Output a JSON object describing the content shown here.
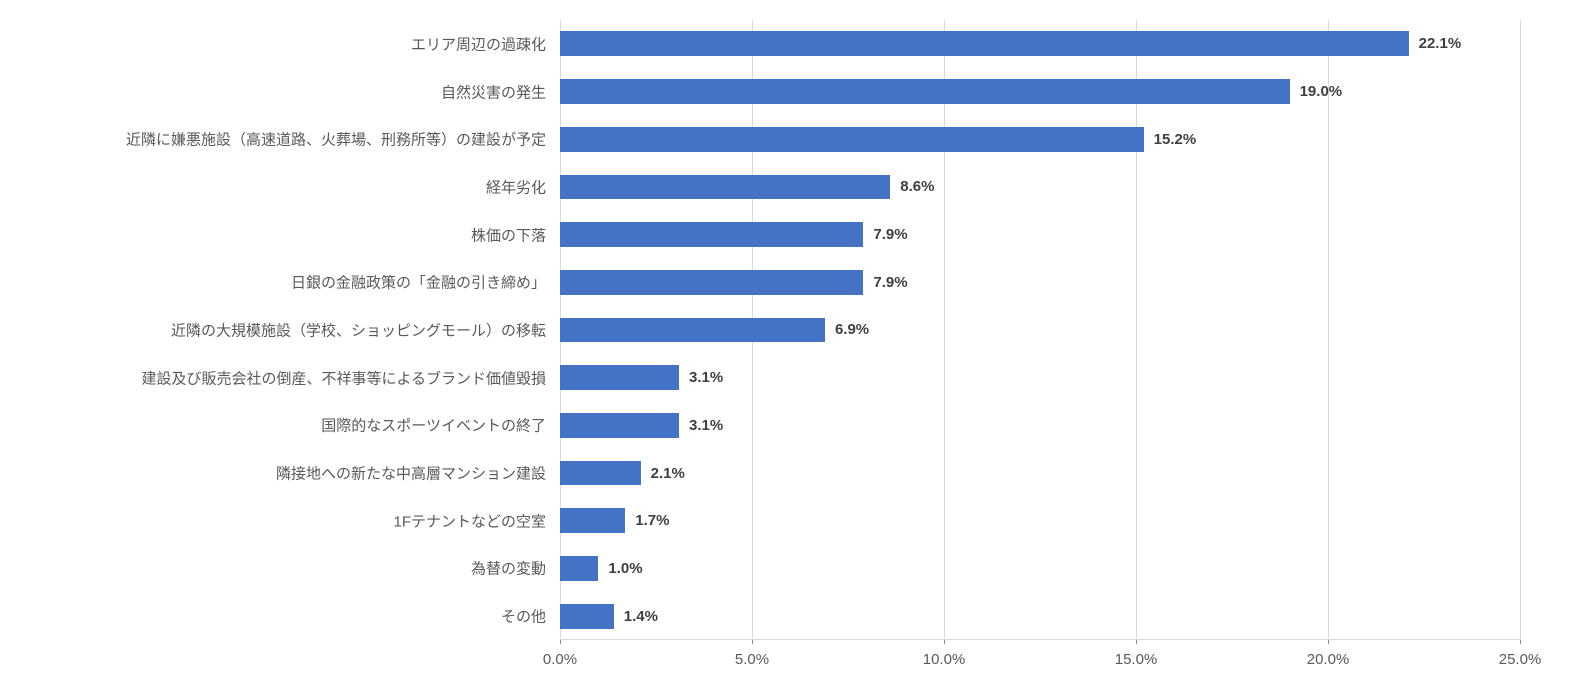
{
  "chart": {
    "type": "bar-horizontal",
    "bar_color": "#4472c4",
    "gridline_color": "#d9d9d9",
    "axis_text_color": "#595959",
    "value_text_color": "#404040",
    "background_color": "#ffffff",
    "label_fontsize": 15,
    "value_fontsize": 15,
    "value_fontweight": 600,
    "xlim_min": 0.0,
    "xlim_max": 25.0,
    "xtick_step": 5.0,
    "xticks": [
      {
        "value": 0.0,
        "label": "0.0%"
      },
      {
        "value": 5.0,
        "label": "5.0%"
      },
      {
        "value": 10.0,
        "label": "10.0%"
      },
      {
        "value": 15.0,
        "label": "15.0%"
      },
      {
        "value": 20.0,
        "label": "20.0%"
      },
      {
        "value": 25.0,
        "label": "25.0%"
      }
    ],
    "bar_height_ratio": 0.52,
    "categories": [
      {
        "label": "エリア周辺の過疎化",
        "value": 22.1,
        "value_label": "22.1%"
      },
      {
        "label": "自然災害の発生",
        "value": 19.0,
        "value_label": "19.0%"
      },
      {
        "label": "近隣に嫌悪施設（高速道路、火葬場、刑務所等）の建設が予定",
        "value": 15.2,
        "value_label": "15.2%"
      },
      {
        "label": "経年劣化",
        "value": 8.6,
        "value_label": "8.6%"
      },
      {
        "label": "株価の下落",
        "value": 7.9,
        "value_label": "7.9%"
      },
      {
        "label": "日銀の金融政策の「金融の引き締め」",
        "value": 7.9,
        "value_label": "7.9%"
      },
      {
        "label": "近隣の大規模施設（学校、ショッピングモール）の移転",
        "value": 6.9,
        "value_label": "6.9%"
      },
      {
        "label": "建設及び販売会社の倒産、不祥事等によるブランド価値毀損",
        "value": 3.1,
        "value_label": "3.1%"
      },
      {
        "label": "国際的なスポーツイベントの終了",
        "value": 3.1,
        "value_label": "3.1%"
      },
      {
        "label": "隣接地への新たな中高層マンション建設",
        "value": 2.1,
        "value_label": "2.1%"
      },
      {
        "label": "1Fテナントなどの空室",
        "value": 1.7,
        "value_label": "1.7%"
      },
      {
        "label": "為替の変動",
        "value": 1.0,
        "value_label": "1.0%"
      },
      {
        "label": "その他",
        "value": 1.4,
        "value_label": "1.4%"
      }
    ]
  }
}
